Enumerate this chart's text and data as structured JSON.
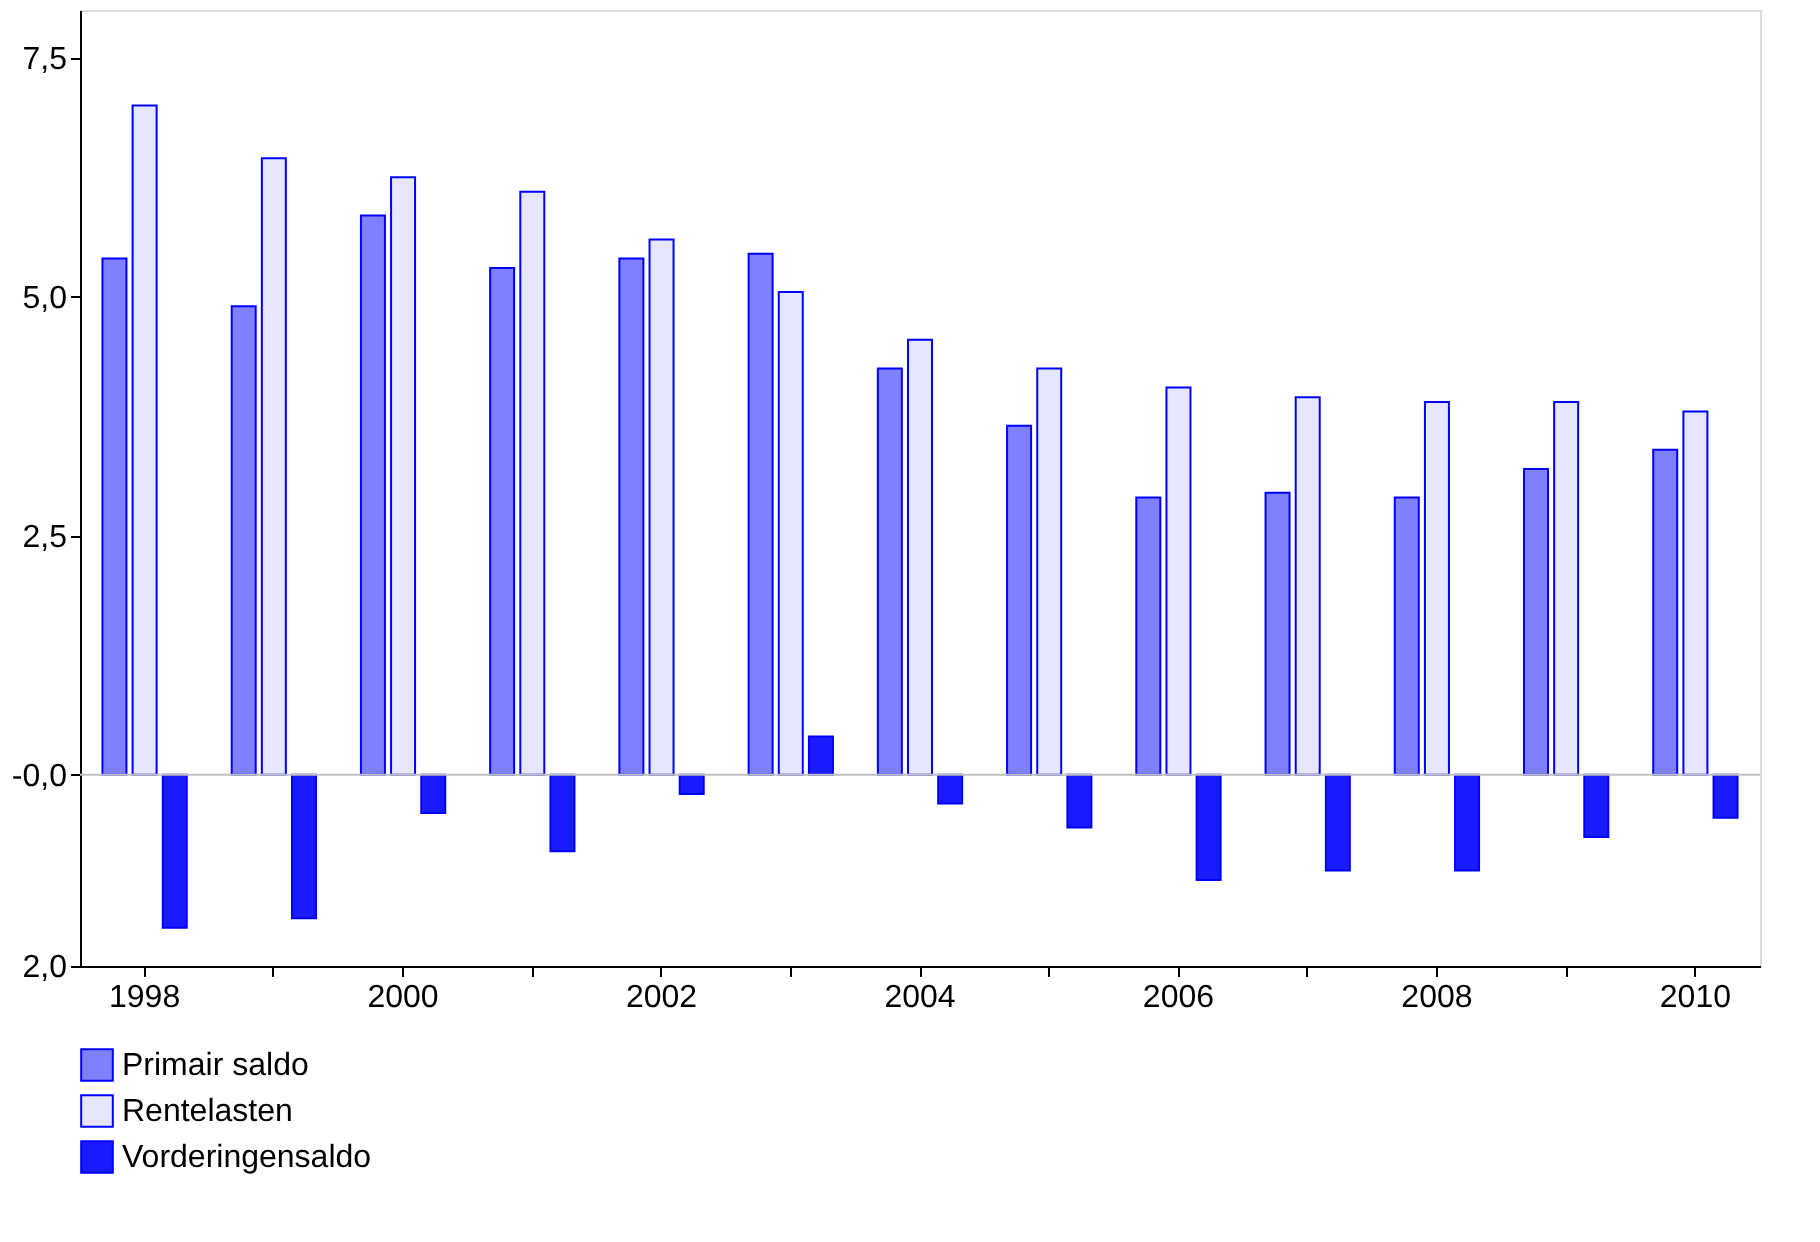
{
  "chart_data": {
    "type": "bar",
    "categories": [
      "1998",
      null,
      "2000",
      null,
      "2002",
      null,
      "2004",
      null,
      "2006",
      null,
      "2008",
      null,
      "2010"
    ],
    "series": [
      {
        "name": "Primair saldo",
        "color": "#8080ff",
        "values": [
          5.4,
          4.9,
          5.85,
          5.3,
          5.4,
          5.45,
          4.25,
          3.65,
          2.9,
          2.95,
          2.9,
          3.2,
          3.4
        ]
      },
      {
        "name": "Rentelasten",
        "color": "#e6e6ff",
        "values": [
          7.0,
          6.45,
          6.25,
          6.1,
          5.6,
          5.05,
          4.55,
          4.25,
          4.05,
          3.95,
          3.9,
          3.9,
          3.8
        ]
      },
      {
        "name": "Vorderingensaldo",
        "color": "#1a1aff",
        "values": [
          -1.6,
          -1.5,
          -0.4,
          -0.8,
          -0.2,
          0.4,
          -0.3,
          -0.55,
          -1.1,
          -1.0,
          -1.0,
          -0.65,
          -0.45
        ]
      }
    ],
    "ylim": [
      -2.0,
      8.0
    ],
    "yticks": [
      {
        "value": -2.0,
        "label": "2,0"
      },
      {
        "value": 0,
        "label": "-0,0"
      },
      {
        "value": 2.5,
        "label": "2,5"
      },
      {
        "value": 5.0,
        "label": "5,0"
      },
      {
        "value": 7.5,
        "label": "7,5"
      }
    ],
    "ref_lines": [
      {
        "axis": "y",
        "value": 0,
        "color": "#c0c0c0"
      }
    ],
    "grid": false,
    "legend": "bottom left"
  }
}
